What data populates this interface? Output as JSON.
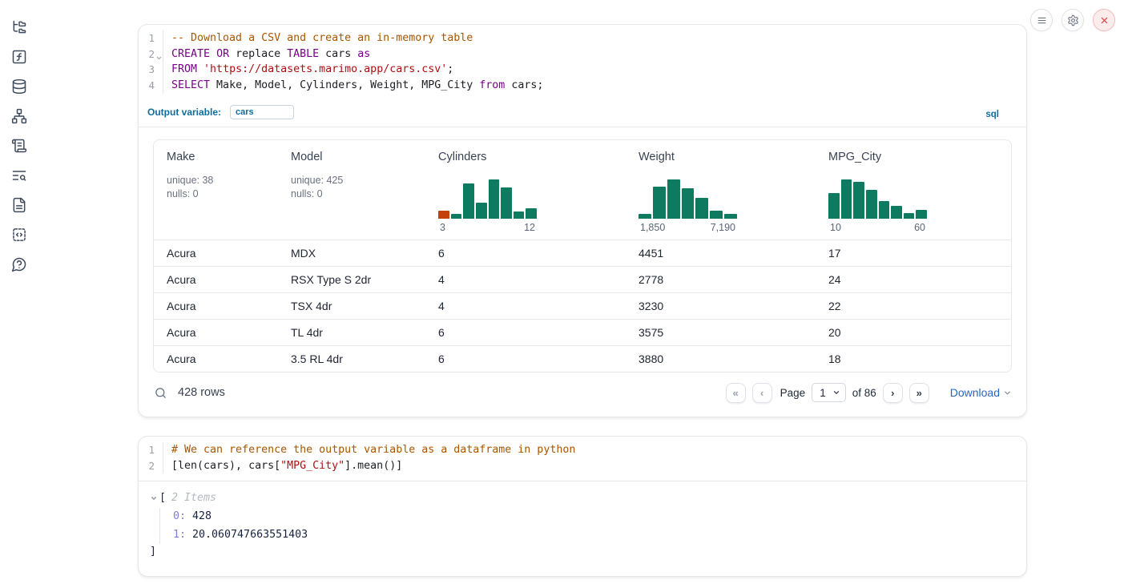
{
  "colors": {
    "accent_blue": "#0d6d9f",
    "link_blue": "#2368c8",
    "hist_teal": "#0e7a60",
    "hist_orange": "#c2410c",
    "close_red": "#e05252"
  },
  "sidebar": {
    "icons": [
      "file-tree",
      "function-square",
      "database",
      "network",
      "scroll-text",
      "text-search",
      "file-text",
      "code-snippet",
      "help-circle"
    ]
  },
  "topbar": {
    "buttons": [
      "menu",
      "settings",
      "shutdown"
    ]
  },
  "cells": {
    "sql": {
      "lines": [
        {
          "num": "1",
          "tokens": [
            {
              "t": "comment",
              "s": "-- Download a CSV and create an in-memory table"
            }
          ]
        },
        {
          "num": "2",
          "fold": true,
          "tokens": [
            {
              "t": "keyword",
              "s": "CREATE"
            },
            {
              "t": "plain",
              "s": " "
            },
            {
              "t": "keyword",
              "s": "OR"
            },
            {
              "t": "plain",
              "s": " replace "
            },
            {
              "t": "keyword",
              "s": "TABLE"
            },
            {
              "t": "plain",
              "s": " cars "
            },
            {
              "t": "keyword",
              "s": "as"
            }
          ]
        },
        {
          "num": "3",
          "tokens": [
            {
              "t": "keyword",
              "s": "FROM"
            },
            {
              "t": "plain",
              "s": " "
            },
            {
              "t": "string",
              "s": "'https://datasets.marimo.app/cars.csv'"
            },
            {
              "t": "plain",
              "s": ";"
            }
          ]
        },
        {
          "num": "4",
          "tokens": [
            {
              "t": "keyword",
              "s": "SELECT"
            },
            {
              "t": "plain",
              "s": " Make, Model, Cylinders, Weight, MPG_City "
            },
            {
              "t": "keyword",
              "s": "from"
            },
            {
              "t": "plain",
              "s": " cars;"
            }
          ]
        }
      ],
      "output_variable": {
        "label": "Output variable:",
        "value": "cars"
      },
      "lang_badge": "sql"
    },
    "python": {
      "lines": [
        {
          "num": "1",
          "tokens": [
            {
              "t": "comment",
              "s": "# We can reference the output variable as a dataframe in python"
            }
          ]
        },
        {
          "num": "2",
          "tokens": [
            {
              "t": "plain",
              "s": "[len(cars), cars["
            },
            {
              "t": "string",
              "s": "\"MPG_City\""
            },
            {
              "t": "plain",
              "s": "].mean()]"
            }
          ]
        }
      ]
    }
  },
  "table": {
    "columns": [
      {
        "name": "Make",
        "stats": [
          "unique: 38",
          "nulls: 0"
        ]
      },
      {
        "name": "Model",
        "stats": [
          "unique: 425",
          "nulls: 0"
        ]
      },
      {
        "name": "Cylinders",
        "hist": {
          "min_label": "3",
          "max_label": "12",
          "rel_heights": [
            0.2,
            0.12,
            0.85,
            0.38,
            0.95,
            0.75,
            0.18,
            0.25
          ],
          "highlight_index": 0
        }
      },
      {
        "name": "Weight",
        "hist": {
          "min_label": "1,850",
          "max_label": "7,190",
          "rel_heights": [
            0.12,
            0.76,
            0.95,
            0.74,
            0.5,
            0.19,
            0.12
          ]
        }
      },
      {
        "name": "MPG_City",
        "hist": {
          "min_label": "10",
          "max_label": "60",
          "rel_heights": [
            0.62,
            0.95,
            0.88,
            0.7,
            0.42,
            0.31,
            0.13,
            0.21
          ]
        }
      }
    ],
    "rows": [
      [
        "Acura",
        "MDX",
        "6",
        "4451",
        "17"
      ],
      [
        "Acura",
        "RSX Type S 2dr",
        "4",
        "2778",
        "24"
      ],
      [
        "Acura",
        "TSX 4dr",
        "4",
        "3230",
        "22"
      ],
      [
        "Acura",
        "TL 4dr",
        "6",
        "3575",
        "20"
      ],
      [
        "Acura",
        "3.5 RL 4dr",
        "6",
        "3880",
        "18"
      ]
    ],
    "footer": {
      "row_count": "428 rows",
      "page_label": "Page",
      "page_value": "1",
      "of_label": "of 86",
      "download_label": "Download"
    }
  },
  "chart_data": [
    {
      "type": "bar",
      "title": "Cylinders histogram",
      "x_range_labels": [
        "3",
        "12"
      ],
      "values": [
        0.2,
        0.12,
        0.85,
        0.38,
        0.95,
        0.75,
        0.18,
        0.25
      ],
      "highlight_index": 0,
      "bar_color": "#0e7a60",
      "highlight_color": "#c2410c"
    },
    {
      "type": "bar",
      "title": "Weight histogram",
      "x_range_labels": [
        "1,850",
        "7,190"
      ],
      "values": [
        0.12,
        0.76,
        0.95,
        0.74,
        0.5,
        0.19,
        0.12
      ],
      "bar_color": "#0e7a60"
    },
    {
      "type": "bar",
      "title": "MPG_City histogram",
      "x_range_labels": [
        "10",
        "60"
      ],
      "values": [
        0.62,
        0.95,
        0.88,
        0.7,
        0.42,
        0.31,
        0.13,
        0.21
      ],
      "bar_color": "#0e7a60"
    }
  ],
  "output_tree": {
    "open_bracket": "[",
    "items_label": "2 Items",
    "entries": [
      {
        "key": "0:",
        "value": "428"
      },
      {
        "key": "1:",
        "value": "20.060747663551403"
      }
    ],
    "close_bracket": "]"
  }
}
